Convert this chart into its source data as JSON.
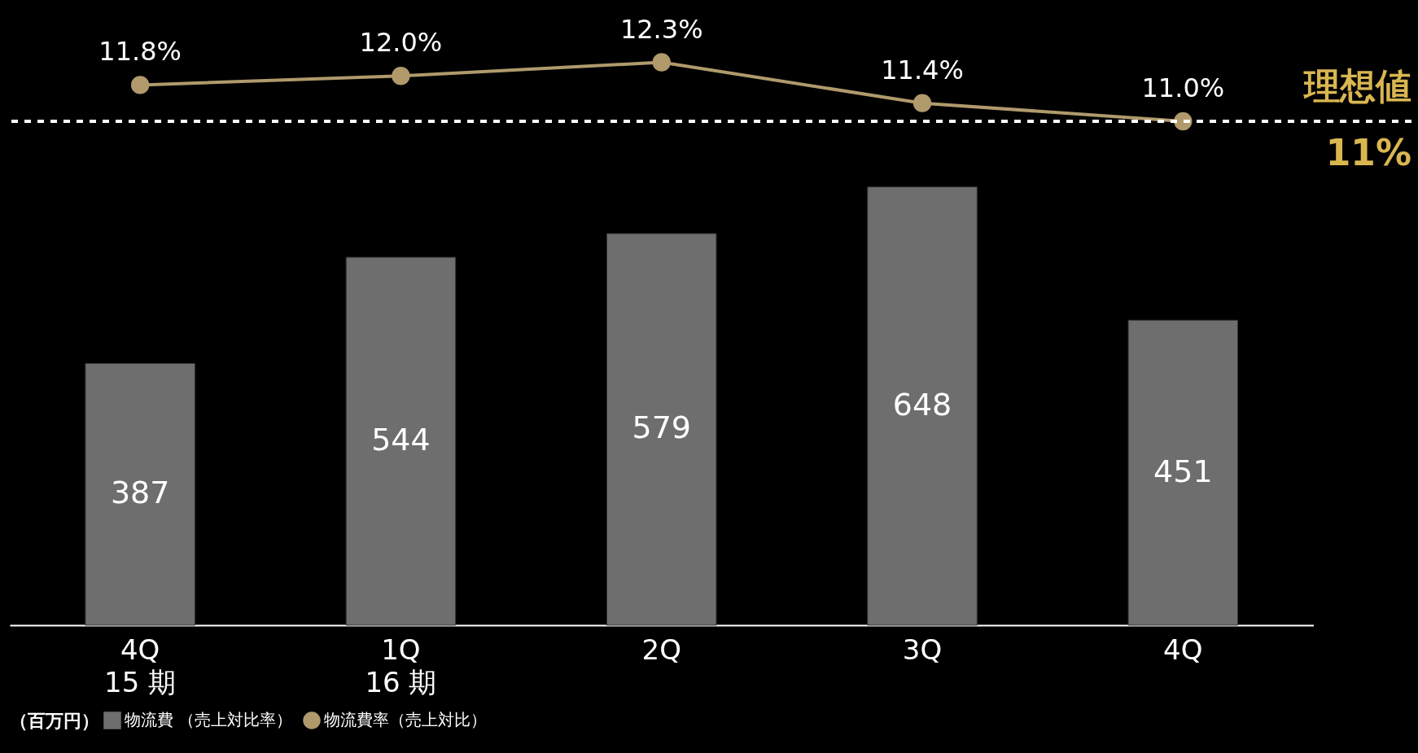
{
  "chart_data": [
    {
      "type": "line",
      "categories": [
        null,
        null,
        null,
        null,
        null
      ],
      "series": [
        {
          "name": "物流費率（売上対比）",
          "color": "#b09a6c",
          "values": [
            11.8,
            12.0,
            12.3,
            11.4,
            11.0
          ],
          "value_labels": [
            "11.8%",
            "12.0%",
            "12.3%",
            "11.4%",
            "11.0%"
          ]
        }
      ],
      "ref_lines": [
        {
          "axis": "y",
          "value": 11,
          "label": "理想値\n11%",
          "color": "#ffffff",
          "line_style": "dashed"
        }
      ],
      "marker": "circle",
      "legend": "bottom left",
      "tick_labels": false
    },
    {
      "type": "bar",
      "categories": [
        "4Q\n15 期",
        "1Q\n16 期",
        "2Q",
        "3Q",
        "4Q"
      ],
      "legend_title": "（百万円）",
      "series": [
        {
          "name": "物流費 （売上対比率）",
          "color": "#6e6e6e",
          "values": [
            387,
            544,
            579,
            648,
            451
          ]
        }
      ],
      "data_labels": true,
      "legend": "bottom left"
    }
  ]
}
